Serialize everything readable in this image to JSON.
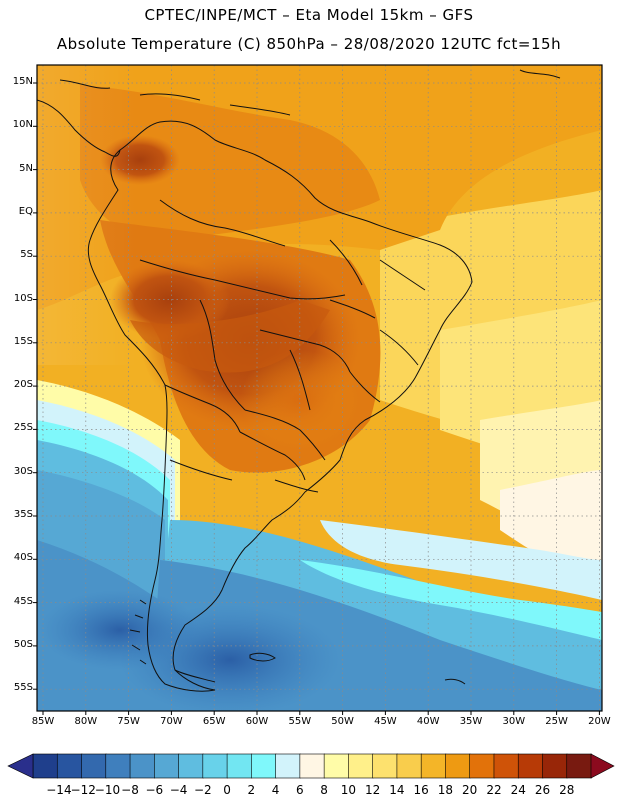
{
  "header": {
    "line1": "CPTEC/INPE/MCT –  Eta Model 15km – GFS",
    "line2": "Absolute Temperature (C) 850hPa – 28/08/2020 12UTC fct=15h"
  },
  "map": {
    "region": "South America",
    "lat_labels": [
      "15N",
      "10N",
      "5N",
      "EQ",
      "5S",
      "10S",
      "15S",
      "20S",
      "25S",
      "30S",
      "35S",
      "40S",
      "45S",
      "50S",
      "55S"
    ],
    "lon_labels": [
      "85W",
      "80W",
      "75W",
      "70W",
      "65W",
      "60W",
      "55W",
      "50W",
      "45W",
      "40W",
      "35W",
      "30W",
      "25W",
      "20W"
    ]
  },
  "colorbar": {
    "labels": [
      "-14",
      "-12",
      "-10",
      "-8",
      "-6",
      "-4",
      "-2",
      "0",
      "2",
      "4",
      "6",
      "8",
      "10",
      "12",
      "14",
      "16",
      "18",
      "20",
      "22",
      "24",
      "26",
      "28"
    ],
    "colors": [
      "#1f3f8c",
      "#2855a0",
      "#3369ae",
      "#3f7fbd",
      "#4b93c8",
      "#56a8d4",
      "#5fbde0",
      "#68d2ea",
      "#72e6f2",
      "#7ff8fb",
      "#d2f3fb",
      "#fff6e4",
      "#fffca8",
      "#fff08a",
      "#fde16e",
      "#f9cd4c",
      "#f4b528",
      "#ee9a12",
      "#e2720a",
      "#cf5308",
      "#b73a06",
      "#982608",
      "#781a10"
    ],
    "under_color": "#2a2f8c",
    "over_color": "#8b0a1e"
  }
}
